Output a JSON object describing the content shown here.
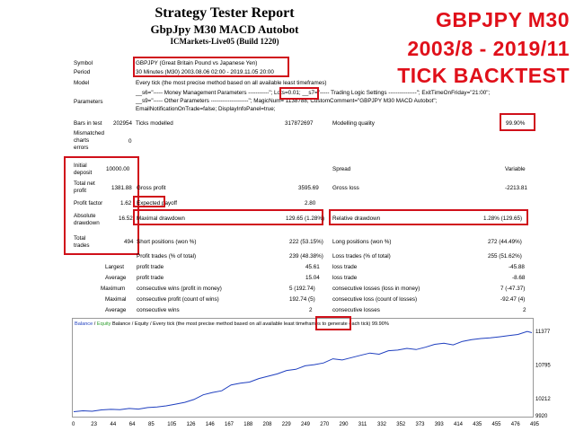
{
  "header": {
    "title": "Strategy Tester Report",
    "subtitle": "GbpJpy M30 MACD Autobot",
    "server": "ICMarkets-Live05 (Build 1220)"
  },
  "overlay": {
    "line1": "GBPJPY M30",
    "line2": "2003/8 - 2019/11",
    "line3": "TICK BACKTEST"
  },
  "info": {
    "symbol_label": "Symbol",
    "symbol_value": "GBPJPY (Great Britain Pound vs Japanese Yen)",
    "period_label": "Period",
    "period_value": "30 Minutes (M30) 2003.08.06 02:00 - 2019.11.05 20:00",
    "model_label": "Model",
    "model_value": "Every tick (the most precise method based on all available least timeframes)",
    "params_label": "Parameters",
    "params_line1": "__s6=\"----- Money Management Parameters -----------\"; Lots=0.01; __s7=\"----- Trading Logic Settings ---------------\"; ExitTimeOnFriday=\"21:00\";",
    "params_line2": "__s9=\"----- Other Parameters --------------------\"; MagicNum= 1138788; CustomComment=\"GBPJPY M30 MACD Autobot\";",
    "params_line3": "EmailNotificationOnTrade=false; DisplayInfoPanel=true;"
  },
  "stats": {
    "bars_label": "Bars in test",
    "bars_value": "202954",
    "ticks_label": "Ticks modelled",
    "ticks_value": "317872697",
    "quality_label": "Modelling quality",
    "quality_value": "99.90%",
    "mismatch_label1": "Mismatched",
    "mismatch_label2": "charts",
    "mismatch_label3": "errors",
    "mismatch_value": "0",
    "deposit_label1": "Initial",
    "deposit_label2": "deposit",
    "deposit_value": "10000.00",
    "spread_label": "Spread",
    "spread_value": "Variable",
    "netprofit_label1": "Total net",
    "netprofit_label2": "profit",
    "netprofit_value": "1381.88",
    "grossprofit_label": "Gross profit",
    "grossprofit_value": "3595.69",
    "grossloss_label": "Gross loss",
    "grossloss_value": "-2213.81",
    "pf_label": "Profit factor",
    "pf_value": "1.62",
    "payoff_label": "Expected payoff",
    "payoff_value": "2.80",
    "absdd_label1": "Absolute",
    "absdd_label2": "drawdown",
    "absdd_value": "16.52",
    "maxdd_label": "Maximal drawdown",
    "maxdd_value": "129.65 (1.28%)",
    "reldd_label": "Relative drawdown",
    "reldd_value": "1.28% (129.65)",
    "trades_label1": "Total",
    "trades_label2": "trades",
    "trades_value": "494",
    "short_label": "Short positions (won %)",
    "short_value": "222 (53.15%)",
    "long_label": "Long positions (won %)",
    "long_value": "272 (44.49%)",
    "profit_trades_label": "Profit trades (% of total)",
    "profit_trades_value": "239 (48.38%)",
    "loss_trades_label": "Loss trades (% of total)",
    "loss_trades_value": "255 (51.62%)",
    "largest_label": "Largest",
    "largest_profit_label": "profit trade",
    "largest_profit_value": "45.61",
    "largest_loss_label": "loss trade",
    "largest_loss_value": "-45.88",
    "average_label": "Average",
    "average_profit_label": "profit trade",
    "average_profit_value": "15.04",
    "average_loss_label": "loss trade",
    "average_loss_value": "-8.68",
    "maximum_label": "Maximum",
    "max_cw_label": "consecutive wins (profit in money)",
    "max_cw_value": "5 (192.74)",
    "max_cl_label": "consecutive losses (loss in money)",
    "max_cl_value": "7 (-47.37)",
    "maximal_label": "Maximal",
    "maximal_cp_label": "consecutive profit (count of wins)",
    "maximal_cp_value": "192.74 (5)",
    "maximal_cl_label": "consecutive loss (count of losses)",
    "maximal_cl_value": "-92.47 (4)",
    "avg2_label": "Average",
    "avg_cw_label": "consecutive wins",
    "avg_cw_value": "2",
    "avg_cl_label": "consecutive losses",
    "avg_cl_value": "2"
  },
  "chart_data": {
    "type": "line",
    "legend_text": "Balance / Equity / Every tick (the most precise method based on all available least timeframes to generate each tick) ",
    "legend_balance": "Balance",
    "legend_equity": "Equity",
    "legend_quality": "99.90%",
    "x_ticks": [
      "0",
      "23",
      "44",
      "64",
      "85",
      "105",
      "126",
      "146",
      "167",
      "188",
      "208",
      "229",
      "249",
      "270",
      "290",
      "311",
      "332",
      "352",
      "373",
      "393",
      "414",
      "435",
      "455",
      "476",
      "495"
    ],
    "y_ticks": [
      "11377",
      "10795",
      "10212",
      "9920"
    ],
    "y_tick_values": [
      11377,
      10795,
      10212,
      9920
    ],
    "ylim": [
      9920,
      11420
    ],
    "xlim": [
      0,
      495
    ],
    "series": [
      {
        "name": "Balance",
        "color": "#1f3fbf",
        "x": [
          0,
          10,
          20,
          30,
          40,
          50,
          60,
          70,
          80,
          90,
          100,
          110,
          120,
          130,
          140,
          150,
          160,
          170,
          180,
          190,
          200,
          210,
          220,
          230,
          240,
          250,
          260,
          270,
          280,
          290,
          300,
          310,
          320,
          330,
          340,
          350,
          360,
          370,
          380,
          390,
          400,
          410,
          420,
          430,
          440,
          450,
          460,
          470,
          480,
          490,
          495
        ],
        "y": [
          9990,
          10005,
          9998,
          10020,
          10030,
          10025,
          10045,
          10035,
          10060,
          10070,
          10090,
          10120,
          10150,
          10200,
          10280,
          10320,
          10350,
          10450,
          10480,
          10500,
          10560,
          10600,
          10640,
          10700,
          10720,
          10780,
          10800,
          10830,
          10900,
          10880,
          10920,
          10960,
          11000,
          10980,
          11040,
          11050,
          11080,
          11060,
          11100,
          11150,
          11170,
          11140,
          11200,
          11230,
          11250,
          11260,
          11280,
          11300,
          11320,
          11370,
          11350
        ]
      }
    ]
  },
  "colors": {
    "accent_red": "#d0101a",
    "balance_line": "#1f3fbf"
  }
}
